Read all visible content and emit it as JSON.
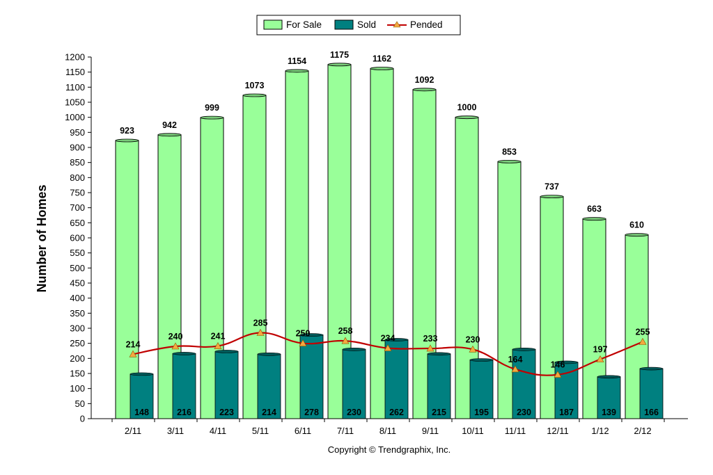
{
  "chart_data": {
    "type": "bar",
    "categories": [
      "2/11",
      "3/11",
      "4/11",
      "5/11",
      "6/11",
      "7/11",
      "8/11",
      "9/11",
      "10/11",
      "11/11",
      "12/11",
      "1/12",
      "2/12"
    ],
    "series": [
      {
        "name": "For Sale",
        "kind": "bar",
        "color": "#99ff99",
        "values": [
          923,
          942,
          999,
          1073,
          1154,
          1175,
          1162,
          1092,
          1000,
          853,
          737,
          663,
          610
        ]
      },
      {
        "name": "Sold",
        "kind": "bar",
        "color": "#008080",
        "values": [
          148,
          216,
          223,
          214,
          278,
          230,
          262,
          215,
          195,
          230,
          187,
          139,
          166
        ]
      },
      {
        "name": "Pended",
        "kind": "line",
        "color": "#c00000",
        "marker_color": "#f4a840",
        "values": [
          214,
          240,
          241,
          285,
          250,
          258,
          234,
          233,
          230,
          164,
          146,
          197,
          255
        ]
      }
    ],
    "ylabel": "Number of Homes",
    "xlabel": "",
    "ylim": [
      0,
      1200
    ],
    "yticks": [
      0,
      50,
      100,
      150,
      200,
      250,
      300,
      350,
      400,
      450,
      500,
      550,
      600,
      650,
      700,
      750,
      800,
      850,
      900,
      950,
      1000,
      1050,
      1100,
      1150,
      1200
    ],
    "legend_position": "top-center",
    "grid": false
  },
  "footer": {
    "copyright": "Copyright © Trendgraphix, Inc."
  }
}
